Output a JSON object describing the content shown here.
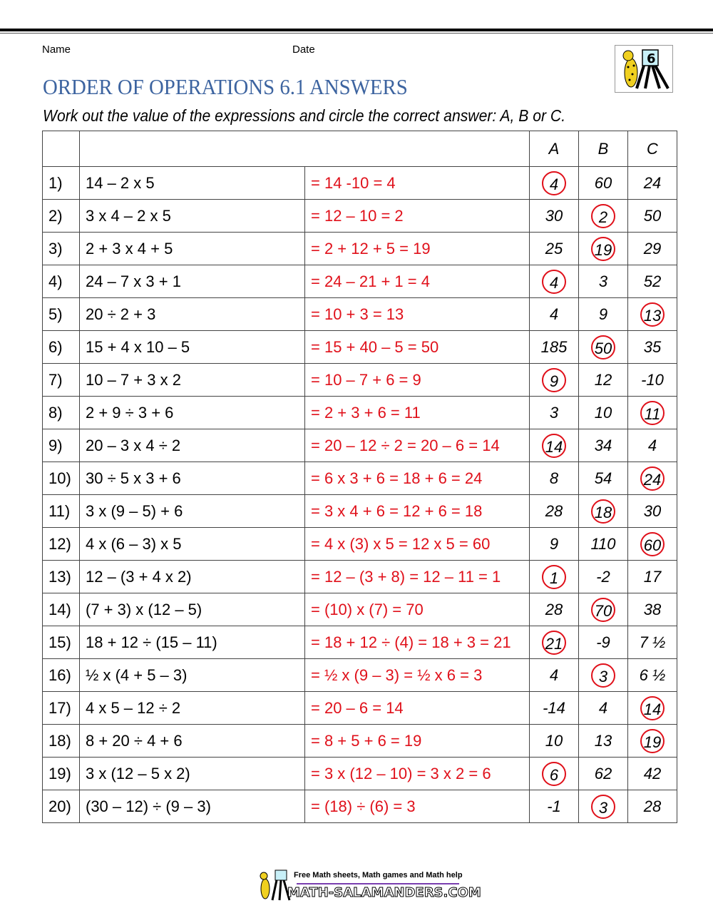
{
  "header": {
    "name_label": "Name",
    "date_label": "Date",
    "title": "ORDER OF OPERATIONS 6.1 ANSWERS",
    "instructions": "Work out the value of the expressions and circle the correct answer: A, B or C.",
    "logo_text": "6"
  },
  "table": {
    "columns": [
      "A",
      "B",
      "C"
    ],
    "rows": [
      {
        "n": "1)",
        "expr": "14 – 2 x 5",
        "work": "= 14 -10 = 4",
        "opts": [
          "4",
          "60",
          "24"
        ],
        "answer": 0
      },
      {
        "n": "2)",
        "expr": "3 x 4 – 2 x 5",
        "work": "= 12 – 10 = 2",
        "opts": [
          "30",
          "2",
          "50"
        ],
        "answer": 1
      },
      {
        "n": "3)",
        "expr": "2 + 3 x 4 + 5",
        "work": "= 2 + 12 + 5 = 19",
        "opts": [
          "25",
          "19",
          "29"
        ],
        "answer": 1
      },
      {
        "n": "4)",
        "expr": "24 – 7 x 3 + 1",
        "work": "= 24 – 21 + 1 = 4",
        "opts": [
          "4",
          "3",
          "52"
        ],
        "answer": 0
      },
      {
        "n": "5)",
        "expr": "20 ÷ 2 + 3",
        "work": "= 10 + 3 = 13",
        "opts": [
          "4",
          "9",
          "13"
        ],
        "answer": 2
      },
      {
        "n": "6)",
        "expr": "15 + 4 x 10 – 5",
        "work": "= 15 + 40 – 5 = 50",
        "opts": [
          "185",
          "50",
          "35"
        ],
        "answer": 1
      },
      {
        "n": "7)",
        "expr": "10 – 7 + 3 x 2",
        "work": "= 10 – 7 + 6 = 9",
        "opts": [
          "9",
          "12",
          "-10"
        ],
        "answer": 0
      },
      {
        "n": "8)",
        "expr": "2 + 9 ÷ 3 + 6",
        "work": "= 2 + 3 + 6 = 11",
        "opts": [
          "3",
          "10",
          "11"
        ],
        "answer": 2
      },
      {
        "n": "9)",
        "expr": "20 – 3 x 4 ÷ 2",
        "work": "= 20 – 12 ÷ 2 = 20 – 6 = 14",
        "opts": [
          "14",
          "34",
          "4"
        ],
        "answer": 0
      },
      {
        "n": "10)",
        "expr": "30 ÷ 5 x 3 + 6",
        "work": "= 6 x 3 + 6 = 18 + 6 = 24",
        "opts": [
          "8",
          "54",
          "24"
        ],
        "answer": 2
      },
      {
        "n": "11)",
        "expr": "3 x (9 – 5) + 6",
        "work": "= 3 x 4 + 6 = 12 + 6 = 18",
        "opts": [
          "28",
          "18",
          "30"
        ],
        "answer": 1
      },
      {
        "n": "12)",
        "expr": "4 x (6 – 3) x 5",
        "work": "= 4 x (3) x 5 = 12 x 5 = 60",
        "opts": [
          "9",
          "110",
          "60"
        ],
        "answer": 2
      },
      {
        "n": "13)",
        "expr": "12 – (3 + 4 x 2)",
        "work": "= 12 – (3 + 8) = 12 – 11 = 1",
        "opts": [
          "1",
          "-2",
          "17"
        ],
        "answer": 0
      },
      {
        "n": "14)",
        "expr": "(7 + 3) x (12 – 5)",
        "work": "= (10) x (7) = 70",
        "opts": [
          "28",
          "70",
          "38"
        ],
        "answer": 1
      },
      {
        "n": "15)",
        "expr": "18 + 12 ÷ (15 – 11)",
        "work": "= 18 + 12 ÷ (4) = 18 + 3 = 21",
        "opts": [
          "21",
          "-9",
          "7 ½"
        ],
        "answer": 0
      },
      {
        "n": "16)",
        "expr": "½ x (4 + 5 – 3)",
        "work": "= ½ x (9 – 3) = ½ x 6 = 3",
        "opts": [
          "4",
          "3",
          "6 ½"
        ],
        "answer": 1
      },
      {
        "n": "17)",
        "expr": "4 x 5 – 12 ÷ 2",
        "work": "= 20 – 6 = 14",
        "opts": [
          "-14",
          "4",
          "14"
        ],
        "answer": 2
      },
      {
        "n": "18)",
        "expr": "8 + 20 ÷ 4 + 6",
        "work": "= 8 + 5 + 6 = 19",
        "opts": [
          "10",
          "13",
          "19"
        ],
        "answer": 2
      },
      {
        "n": "19)",
        "expr": "3 x (12 – 5 x 2)",
        "work": "= 3 x (12 – 10) = 3 x 2 = 6",
        "opts": [
          "6",
          "62",
          "42"
        ],
        "answer": 0
      },
      {
        "n": "20)",
        "expr": "(30 – 12) ÷ (9 – 3)",
        "work": "= (18) ÷ (6) = 3",
        "opts": [
          "-1",
          "3",
          "28"
        ],
        "answer": 1
      }
    ]
  },
  "footer": {
    "tagline": "Free Math sheets, Math games and Math help",
    "site": "MATH-SALAMANDERS.COM"
  },
  "colors": {
    "title": "#3d64a0",
    "answer": "#e0101a"
  }
}
